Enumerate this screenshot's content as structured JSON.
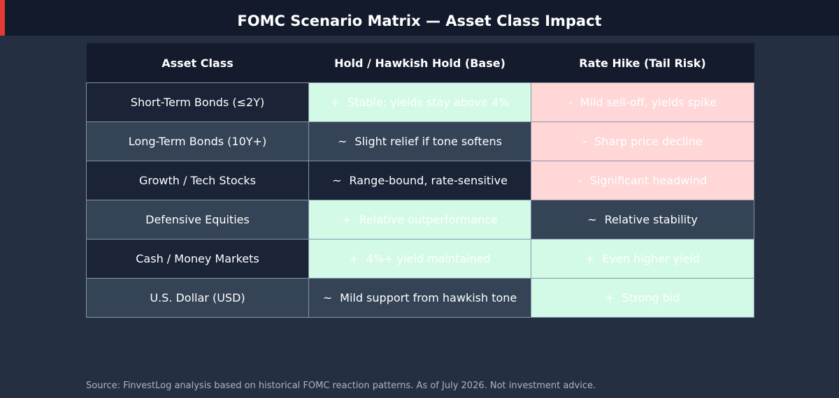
{
  "header": {
    "title": "FOMC Scenario Matrix — Asset Class Impact"
  },
  "table": {
    "columns": [
      "Asset Class",
      "Hold / Hawkish Hold (Base)",
      "Rate Hike (Tail Risk)"
    ],
    "rows": [
      {
        "asset": "Short-Term Bonds (≤2Y)",
        "base": {
          "symbol": "+",
          "text": "Stable; yields stay above 4%",
          "tone": "pos"
        },
        "hike": {
          "symbol": "-",
          "text": "Mild sell-off, yields spike",
          "tone": "neg"
        }
      },
      {
        "asset": "Long-Term Bonds (10Y+)",
        "base": {
          "symbol": "~",
          "text": "Slight relief if tone softens",
          "tone": "neu"
        },
        "hike": {
          "symbol": "-",
          "text": "Sharp price decline",
          "tone": "neg"
        }
      },
      {
        "asset": "Growth / Tech Stocks",
        "base": {
          "symbol": "~",
          "text": "Range-bound, rate-sensitive",
          "tone": "neu"
        },
        "hike": {
          "symbol": "-",
          "text": "Significant headwind",
          "tone": "neg"
        }
      },
      {
        "asset": "Defensive Equities",
        "base": {
          "symbol": "+",
          "text": "Relative outperformance",
          "tone": "pos"
        },
        "hike": {
          "symbol": "~",
          "text": "Relative stability",
          "tone": "neu"
        }
      },
      {
        "asset": "Cash / Money Markets",
        "base": {
          "symbol": "+",
          "text": "4%+ yield maintained",
          "tone": "pos"
        },
        "hike": {
          "symbol": "+",
          "text": "Even higher yield",
          "tone": "pos"
        }
      },
      {
        "asset": "U.S. Dollar (USD)",
        "base": {
          "symbol": "~",
          "text": "Mild support from hawkish tone",
          "tone": "neu"
        },
        "hike": {
          "symbol": "+",
          "text": "Strong bid",
          "tone": "pos"
        }
      }
    ]
  },
  "footer": {
    "source": "Source: FinvestLog analysis based on historical FOMC reaction patterns. As of July 2026. Not investment advice."
  },
  "colors": {
    "background": "#243041",
    "header_bar": "#121a2b",
    "accent": "#e53935",
    "positive": "#d2fae7",
    "negative": "#ffd7d7"
  }
}
